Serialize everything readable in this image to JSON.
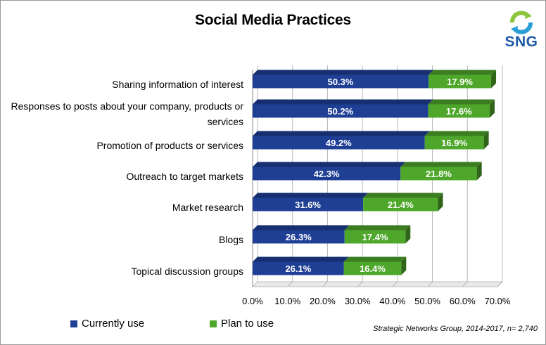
{
  "chart_data": {
    "type": "bar",
    "orientation": "horizontal",
    "stacked": true,
    "title": "Social Media Practices",
    "categories": [
      "Sharing information of interest",
      "Responses to posts about your company, products or services",
      "Promotion of products or services",
      "Outreach to target markets",
      "Market research",
      "Blogs",
      "Topical discussion groups"
    ],
    "series": [
      {
        "name": "Currently use",
        "color": "#1f3f95",
        "values": [
          50.3,
          50.2,
          49.2,
          42.3,
          31.6,
          26.3,
          26.1
        ]
      },
      {
        "name": "Plan to use",
        "color": "#4ea72a",
        "values": [
          17.9,
          17.6,
          16.9,
          21.8,
          21.4,
          17.4,
          16.4
        ]
      }
    ],
    "data_labels": [
      [
        "50.3%",
        "50.2%",
        "49.2%",
        "42.3%",
        "31.6%",
        "26.3%",
        "26.1%"
      ],
      [
        "17.9%",
        "17.6%",
        "16.9%",
        "21.8%",
        "21.4%",
        "17.4%",
        "16.4%"
      ]
    ],
    "xlim": [
      0,
      70
    ],
    "xticks": [
      "0.0%",
      "10.0%",
      "20.0%",
      "30.0%",
      "40.0%",
      "50.0%",
      "60.0%",
      "70.0%"
    ],
    "grid": true,
    "legend_position": "bottom-left"
  },
  "branding": {
    "logo_text": "SNG"
  },
  "source_note": "Strategic Networks Group, 2014-2017, n= 2,740"
}
